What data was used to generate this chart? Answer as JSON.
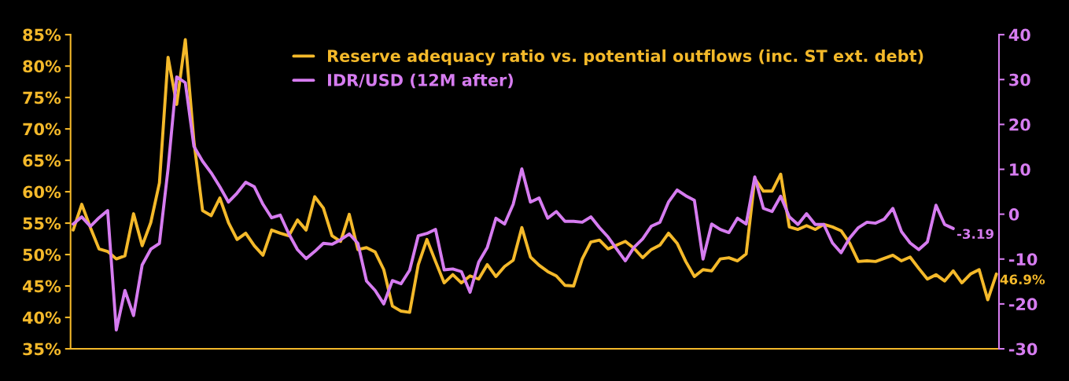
{
  "chart_data": {
    "type": "line",
    "categories": [
      null,
      null,
      null,
      null,
      null,
      null,
      null,
      null,
      null,
      null,
      null,
      null,
      null,
      null,
      null,
      null,
      null,
      null,
      null,
      null,
      null,
      null,
      null,
      null,
      null,
      null,
      null,
      null,
      null,
      null,
      null,
      null,
      null,
      null,
      null,
      null,
      null,
      null,
      null,
      null,
      null,
      null,
      null,
      null,
      null,
      null,
      null,
      null,
      null,
      null,
      null,
      null,
      null,
      null,
      null,
      null,
      null,
      null,
      null,
      null,
      null,
      null,
      null,
      null,
      null,
      null,
      null,
      null,
      null,
      null,
      null,
      null,
      null,
      null,
      null,
      null,
      null,
      null,
      null,
      null,
      null,
      null,
      null,
      null,
      null,
      null,
      null,
      null,
      null,
      null,
      null,
      null,
      null,
      null,
      null,
      null,
      null,
      null,
      null,
      null,
      null,
      null,
      null,
      null,
      null,
      null,
      null,
      null
    ],
    "series": [
      {
        "name": "Reserve adequacy ratio vs. potential outflows (inc. ST ext. debt)",
        "color": "#f4b92a",
        "values": [
          53.9,
          58.0,
          54.3,
          50.9,
          50.5,
          49.3,
          49.8,
          56.5,
          51.4,
          55.1,
          61.4,
          81.4,
          73.9,
          84.2,
          68.0,
          57.0,
          56.2,
          59.0,
          55.1,
          52.4,
          53.4,
          51.4,
          49.9,
          53.9,
          53.4,
          53.0,
          55.5,
          53.9,
          59.2,
          57.4,
          53.0,
          52.1,
          56.4,
          50.8,
          51.1,
          50.4,
          47.6,
          41.8,
          41.0,
          40.8,
          48.4,
          52.4,
          48.9,
          45.5,
          46.8,
          45.5,
          46.6,
          46.1,
          48.4,
          46.5,
          48.1,
          49.1,
          54.3,
          49.6,
          48.3,
          47.3,
          46.6,
          45.1,
          45.0,
          49.3,
          52.0,
          52.3,
          50.9,
          51.5,
          52.1,
          51.0,
          49.5,
          50.8,
          51.5,
          53.4,
          51.8,
          48.9,
          46.5,
          47.6,
          47.4,
          49.3,
          49.5,
          49.0,
          50.1,
          62.1,
          60.1,
          60.1,
          62.8,
          54.4,
          54.0,
          54.6,
          54.0,
          54.8,
          54.4,
          53.8,
          51.8,
          48.9,
          49.0,
          48.9,
          49.4,
          49.9,
          49.0,
          49.6,
          47.8,
          46.1,
          46.8,
          45.8,
          47.4,
          45.5,
          46.9,
          47.6,
          42.8,
          46.9
        ],
        "value_labels": [
          null,
          null,
          null,
          null,
          null,
          null,
          null,
          null,
          null,
          null,
          null,
          null,
          null,
          null,
          null,
          null,
          null,
          null,
          null,
          null,
          null,
          null,
          null,
          null,
          null,
          null,
          null,
          null,
          null,
          null,
          null,
          null,
          null,
          null,
          null,
          null,
          null,
          null,
          null,
          null,
          null,
          null,
          null,
          null,
          null,
          null,
          null,
          null,
          null,
          null,
          null,
          null,
          null,
          null,
          null,
          null,
          null,
          null,
          null,
          null,
          null,
          null,
          null,
          null,
          null,
          null,
          null,
          null,
          null,
          null,
          null,
          null,
          null,
          null,
          null,
          null,
          null,
          null,
          null,
          null,
          null,
          null,
          null,
          null,
          null,
          null,
          null,
          null,
          null,
          null,
          null,
          null,
          null,
          null,
          null,
          null,
          null,
          null,
          null,
          null,
          null,
          null,
          null,
          null,
          null,
          null,
          null,
          "46.9%"
        ]
      },
      {
        "name": "IDR/USD (12M after)",
        "color": "#d67cf0",
        "axis": "y2",
        "values": [
          -2.2,
          -0.6,
          -2.7,
          -0.8,
          0.8,
          -25.8,
          -17.0,
          -22.6,
          -11.3,
          -7.8,
          -6.5,
          10.1,
          30.6,
          29.3,
          15.1,
          11.8,
          9.2,
          6.1,
          2.7,
          4.7,
          7.1,
          6.1,
          2.2,
          -0.8,
          -0.2,
          -4.4,
          -7.9,
          -9.9,
          -8.3,
          -6.5,
          -6.7,
          -5.7,
          -4.4,
          -6.5,
          -14.9,
          -17.0,
          -20.0,
          -14.8,
          -15.5,
          -12.5,
          -4.8,
          -4.3,
          -3.4,
          -12.4,
          -12.2,
          -12.8,
          -17.4,
          -10.7,
          -7.4,
          -0.9,
          -2.2,
          2.2,
          10.1,
          2.7,
          3.6,
          -0.9,
          0.6,
          -1.6,
          -1.6,
          -1.8,
          -0.6,
          -3.0,
          -5.1,
          -7.8,
          -10.4,
          -7.4,
          -5.5,
          -2.7,
          -1.8,
          2.7,
          5.4,
          4.1,
          3.1,
          -10.0,
          -2.2,
          -3.4,
          -4.1,
          -0.9,
          -2.2,
          8.3,
          1.3,
          0.6,
          4.0,
          -0.6,
          -2.3,
          0.1,
          -2.3,
          -2.3,
          -6.4,
          -8.6,
          -5.3,
          -3.0,
          -1.8,
          -2.0,
          -1.1,
          1.3,
          -3.9,
          -6.4,
          -7.9,
          -6.2,
          2.0,
          -2.3,
          -3.19,
          null,
          null,
          null,
          null,
          null
        ],
        "value_labels": [
          null,
          null,
          null,
          null,
          null,
          null,
          null,
          null,
          null,
          null,
          null,
          null,
          null,
          null,
          null,
          null,
          null,
          null,
          null,
          null,
          null,
          null,
          null,
          null,
          null,
          null,
          null,
          null,
          null,
          null,
          null,
          null,
          null,
          null,
          null,
          null,
          null,
          null,
          null,
          null,
          null,
          null,
          null,
          null,
          null,
          null,
          null,
          null,
          null,
          null,
          null,
          null,
          null,
          null,
          null,
          null,
          null,
          null,
          null,
          null,
          null,
          null,
          null,
          null,
          null,
          null,
          null,
          null,
          null,
          null,
          null,
          null,
          null,
          null,
          null,
          null,
          null,
          null,
          null,
          null,
          null,
          null,
          null,
          null,
          null,
          null,
          null,
          null,
          null,
          null,
          null,
          null,
          null,
          null,
          null,
          null,
          null,
          null,
          null,
          null,
          null,
          null,
          "-3.19",
          null,
          null,
          null,
          null,
          null
        ]
      }
    ],
    "ylim": [
      35,
      85
    ],
    "yticks": [
      {
        "value": 35,
        "label": "35%"
      },
      {
        "value": 40,
        "label": "40%"
      },
      {
        "value": 45,
        "label": "45%"
      },
      {
        "value": 50,
        "label": "50%"
      },
      {
        "value": 55,
        "label": "55%"
      },
      {
        "value": 60,
        "label": "60%"
      },
      {
        "value": 65,
        "label": "65%"
      },
      {
        "value": 70,
        "label": "70%"
      },
      {
        "value": 75,
        "label": "75%"
      },
      {
        "value": 80,
        "label": "80%"
      },
      {
        "value": 85,
        "label": "85%"
      }
    ],
    "y2lim": [
      -30,
      40
    ],
    "y2ticks": [
      -30,
      -20,
      -10,
      0,
      10,
      20,
      30,
      40
    ],
    "legend": "top",
    "grid": false
  }
}
